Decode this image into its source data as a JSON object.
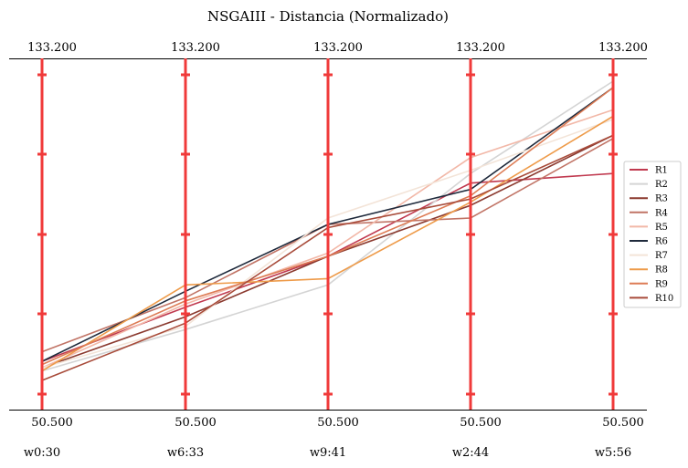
{
  "chart_data": {
    "type": "parallel-coordinates",
    "title": "NSGAIII - Distancia (Normalizado)",
    "axes": [
      {
        "name": "w0:30",
        "top_label": "133.200",
        "bottom_label": "50.500"
      },
      {
        "name": "w6:33",
        "top_label": "133.200",
        "bottom_label": "50.500"
      },
      {
        "name": "w9:41",
        "top_label": "133.200",
        "bottom_label": "50.500"
      },
      {
        "name": "w2:44",
        "top_label": "133.200",
        "bottom_label": "50.500"
      },
      {
        "name": "w5:56",
        "top_label": "133.200",
        "bottom_label": "50.500"
      }
    ],
    "normalized_range": [
      0,
      1
    ],
    "series": [
      {
        "name": "R1",
        "color": "#c0394f",
        "values": [
          0.1,
          0.27,
          0.43,
          0.66,
          0.69
        ]
      },
      {
        "name": "R2",
        "color": "#d4d4d4",
        "values": [
          0.07,
          0.2,
          0.34,
          0.69,
          0.98
        ]
      },
      {
        "name": "R3",
        "color": "#8b3a2f",
        "values": [
          0.08,
          0.24,
          0.43,
          0.59,
          0.81
        ]
      },
      {
        "name": "R4",
        "color": "#c17466",
        "values": [
          0.13,
          0.3,
          0.53,
          0.55,
          0.8
        ]
      },
      {
        "name": "R5",
        "color": "#f2b8a8",
        "values": [
          0.08,
          0.28,
          0.44,
          0.74,
          0.89
        ]
      },
      {
        "name": "R6",
        "color": "#1f2a3c",
        "values": [
          0.1,
          0.32,
          0.53,
          0.64,
          0.96
        ]
      },
      {
        "name": "R7",
        "color": "#f3e4d8",
        "values": [
          0.08,
          0.21,
          0.55,
          0.7,
          0.86
        ]
      },
      {
        "name": "R8",
        "color": "#ee9b4a",
        "values": [
          0.07,
          0.34,
          0.36,
          0.6,
          0.87
        ]
      },
      {
        "name": "R9",
        "color": "#dd7c55",
        "values": [
          0.09,
          0.29,
          0.43,
          0.62,
          0.96
        ]
      },
      {
        "name": "R10",
        "color": "#a84b3a",
        "values": [
          0.04,
          0.22,
          0.52,
          0.61,
          0.81
        ]
      }
    ]
  }
}
